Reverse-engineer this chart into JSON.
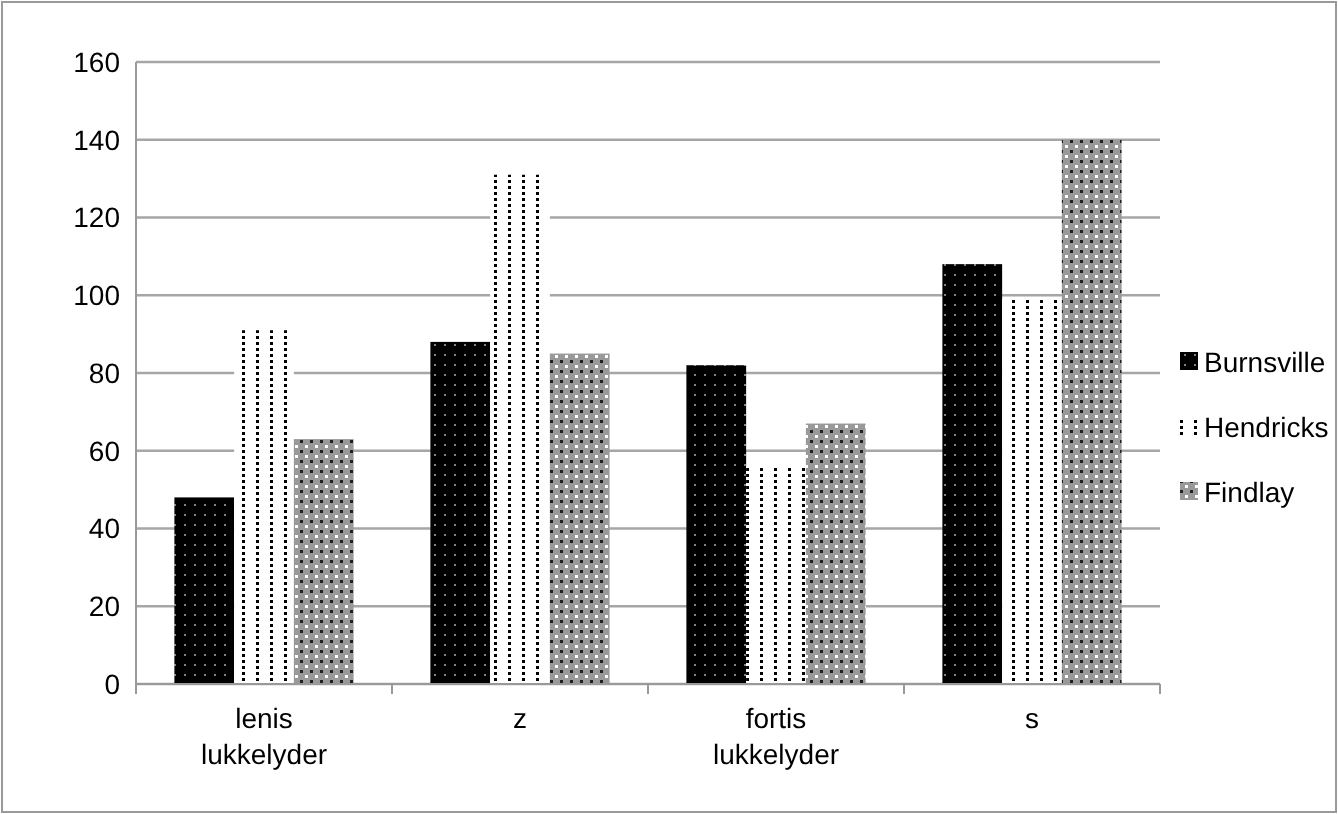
{
  "chart_data": {
    "type": "bar",
    "categories": [
      "lenis lukkelyder",
      "z",
      "fortis lukkelyder",
      "s"
    ],
    "series": [
      {
        "name": "Burnsville",
        "color": "#000000",
        "values": [
          48,
          88,
          82,
          108
        ]
      },
      {
        "name": "Hendricks",
        "color": "#ffffff",
        "values": [
          91,
          131,
          56,
          99
        ]
      },
      {
        "name": "Findlay",
        "color": "#999999",
        "values": [
          63,
          85,
          67,
          140
        ]
      }
    ],
    "ylim": [
      0,
      160
    ],
    "yticks": [
      0,
      20,
      40,
      60,
      80,
      100,
      120,
      140,
      160
    ],
    "grid": "y",
    "legend": "right"
  }
}
